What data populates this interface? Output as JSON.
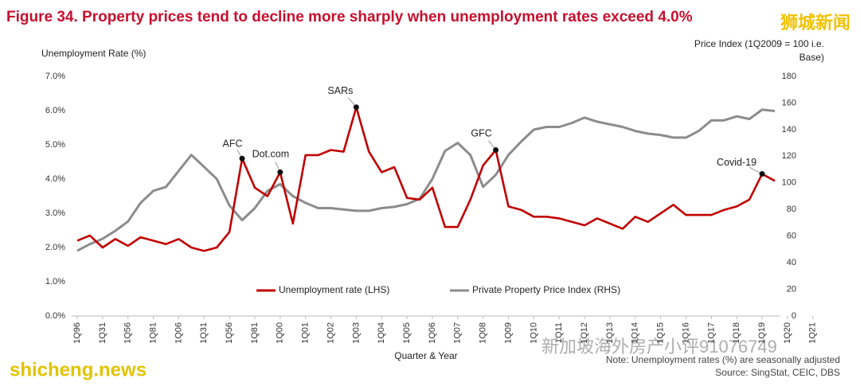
{
  "chart_data": {
    "type": "line",
    "title": "Figure 34. Property prices tend to decline more sharply when unemployment rates exceed 4.0%",
    "y_label": "Unemployment Rate (%)",
    "y2_label": [
      "Price Index (1Q2009 = 100 i.e.",
      "Base)"
    ],
    "x_label": "Quarter & Year",
    "notes": [
      "Note: Unemployment rates (%) are seasonally adjusted",
      "Source: SingStat, CEIC, DBS"
    ],
    "watermarks": [
      "狮城新闻",
      "shicheng.news",
      "新加坡海外房产小评91076749"
    ],
    "annotations": [
      "AFC",
      "Dot.com",
      "SARs",
      "GFC",
      "Covid-19"
    ],
    "categories": [
      "1Q96",
      null,
      "1Q31",
      null,
      "1Q56",
      null,
      "1Q81",
      null,
      "1Q06",
      null,
      "1Q31",
      null,
      "1Q56",
      null,
      "1Q81",
      null,
      "1Q00",
      null,
      "1Q01",
      null,
      "1Q02",
      null,
      "1Q03",
      null,
      "1Q04",
      null,
      "1Q05",
      null,
      "1Q06",
      null,
      "1Q07",
      null,
      "1Q08",
      null,
      "1Q09",
      null,
      "1Q10",
      null,
      "1Q11",
      null,
      "1Q12",
      null,
      "1Q13",
      null,
      "1Q14",
      null,
      "1Q15",
      null,
      "1Q16",
      null,
      "1Q17",
      null,
      "1Q18",
      null,
      "1Q19",
      null,
      "1Q20",
      null,
      "1Q21"
    ],
    "series": [
      {
        "name": "Unemployment rate (LHS)",
        "color": "#c00000",
        "axis": "y",
        "values": [
          2.2,
          2.35,
          2.0,
          2.25,
          2.05,
          2.3,
          2.2,
          2.1,
          2.25,
          2.0,
          1.9,
          2.0,
          2.45,
          4.6,
          3.75,
          3.5,
          4.2,
          2.7,
          4.7,
          4.7,
          4.85,
          4.8,
          6.1,
          4.8,
          4.2,
          4.35,
          3.45,
          3.4,
          3.75,
          2.6,
          2.6,
          3.4,
          4.4,
          4.85,
          3.2,
          3.1,
          2.9,
          2.9,
          2.85,
          2.75,
          2.65,
          2.85,
          2.7,
          2.55,
          2.9,
          2.75,
          3.0,
          3.25,
          2.95,
          2.95,
          2.95,
          3.1,
          3.2,
          3.4,
          4.15,
          3.95,
          null,
          null,
          null
        ]
      },
      {
        "name": "Private Property Price Index (RHS)",
        "color": "#8c8c8c",
        "axis": "y2",
        "values": [
          49,
          54,
          58,
          64,
          71,
          85,
          94,
          97,
          109,
          121,
          112,
          103,
          83,
          72,
          81,
          94,
          99,
          90,
          85,
          81,
          81,
          80,
          79,
          79,
          81,
          82,
          84,
          88,
          103,
          124,
          130,
          121,
          97,
          106,
          121,
          131,
          140,
          142,
          142,
          145,
          149,
          146,
          144,
          142,
          139,
          137,
          136,
          134,
          134,
          139,
          147,
          147,
          150,
          148,
          155,
          154,
          null,
          null,
          null
        ]
      }
    ],
    "ylim": [
      0,
      7
    ],
    "yticks": [
      {
        "value": 0,
        "label": "0.0%"
      },
      {
        "value": 1,
        "label": "1.0%"
      },
      {
        "value": 2,
        "label": "2.0%"
      },
      {
        "value": 3,
        "label": "3.0%"
      },
      {
        "value": 4,
        "label": "4.0%"
      },
      {
        "value": 5,
        "label": "5.0%"
      },
      {
        "value": 6,
        "label": "6.0%"
      },
      {
        "value": 7,
        "label": "7.0%"
      }
    ],
    "y2lim": [
      0,
      180
    ],
    "y2ticks": [
      0,
      20,
      40,
      60,
      80,
      100,
      120,
      140,
      160,
      180
    ],
    "grid": false,
    "legend": "bottom"
  }
}
